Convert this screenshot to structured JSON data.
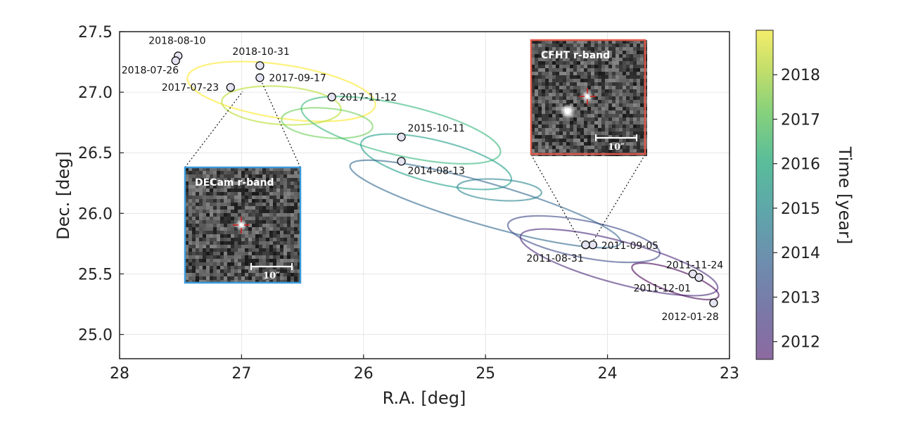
{
  "chart_data": {
    "type": "scatter",
    "xlabel": "R.A. [deg]",
    "ylabel": "Dec. [deg]",
    "xlim": [
      28,
      23
    ],
    "ylim": [
      24.8,
      27.5
    ],
    "x_ticks": [
      "28",
      "27",
      "26",
      "25",
      "24",
      "23"
    ],
    "y_ticks": [
      "27.5",
      "27.0",
      "26.5",
      "26.0",
      "25.5",
      "25.0"
    ],
    "grid": true,
    "colorbar": {
      "label": "Time [year]",
      "range": [
        2011.6,
        2019.0
      ],
      "ticks": [
        "2018",
        "2017",
        "2016",
        "2015",
        "2014",
        "2013",
        "2012"
      ],
      "colormap": "viridis"
    },
    "points": [
      {
        "label": "2018-08-10",
        "x": 27.52,
        "y": 27.3
      },
      {
        "label": "2018-07-26",
        "x": 27.54,
        "y": 27.26
      },
      {
        "label": "2018-10-31",
        "x": 26.85,
        "y": 27.22
      },
      {
        "label": "2017-09-17",
        "x": 26.85,
        "y": 27.12
      },
      {
        "label": "2017-07-23",
        "x": 27.09,
        "y": 27.04
      },
      {
        "label": "2017-11-12",
        "x": 26.26,
        "y": 26.96
      },
      {
        "label": "2015-10-11",
        "x": 25.69,
        "y": 26.63
      },
      {
        "label": "2014-08-13",
        "x": 25.69,
        "y": 26.43
      },
      {
        "label": "2011-09-05",
        "x": 24.12,
        "y": 25.74
      },
      {
        "label": "2011-08-31",
        "x": 24.18,
        "y": 25.74
      },
      {
        "label": "2011-11-24",
        "x": 23.3,
        "y": 25.5
      },
      {
        "label": "2011-12-01",
        "x": 23.25,
        "y": 25.47
      },
      {
        "label": "2012-01-28",
        "x": 23.13,
        "y": 25.26
      }
    ],
    "orbit_colors": [
      "#fde725",
      "#b5de2b",
      "#6ece58",
      "#35b779",
      "#1f9e89",
      "#26828e",
      "#31688e",
      "#3e4989",
      "#482878",
      "#440154"
    ],
    "insets": [
      {
        "title": "DECam r-band",
        "scale_label": "10″",
        "border_color": "#3a9ad9"
      },
      {
        "title": "CFHT r-band",
        "scale_label": "10″",
        "border_color": "#e0584a"
      }
    ]
  }
}
